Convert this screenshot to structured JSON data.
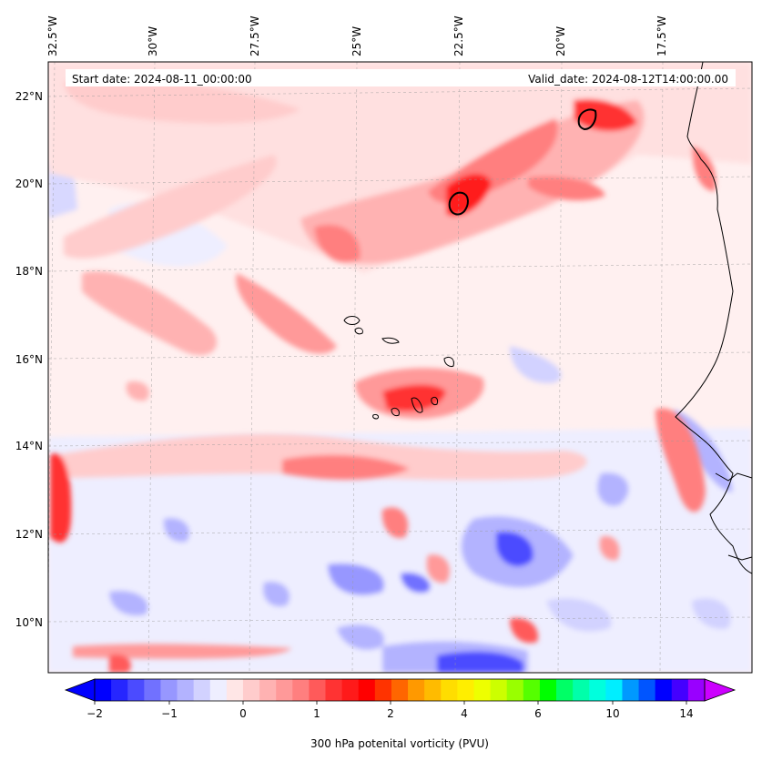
{
  "map": {
    "start_date_text": "Start date: 2024-08-11_00:00:00",
    "valid_date_text": "Valid_date: 2024-08-12T14:00:00.00",
    "longitude_labels": [
      "32.5°W",
      "30°W",
      "27.5°W",
      "25°W",
      "22.5°W",
      "20°W",
      "17.5°W"
    ],
    "latitude_labels": [
      "22°N",
      "20°N",
      "18°N",
      "16°N",
      "14°N",
      "12°N",
      "10°N"
    ],
    "extent": {
      "lon_min": -33.0,
      "lon_max": -15.0,
      "lat_min": 8.8,
      "lat_max": 22.8
    }
  },
  "colorbar": {
    "title": "300 hPa potenital vorticity (PVU)",
    "tick_labels": [
      "−2",
      "−1",
      "0",
      "1",
      "2",
      "4",
      "6",
      "10",
      "14"
    ],
    "colors": [
      "#0000ff",
      "#2626ff",
      "#4b4bff",
      "#7171ff",
      "#9797ff",
      "#b3b3ff",
      "#d2d2ff",
      "#eeeeff",
      "#ffe6e6",
      "#ffcccc",
      "#ffb2b2",
      "#ff9999",
      "#ff7f7f",
      "#ff5a5a",
      "#ff3333",
      "#ff1a1a",
      "#ff0000",
      "#ff3300",
      "#ff6600",
      "#ff9900",
      "#ffbb00",
      "#ffdd00",
      "#ffee00",
      "#eeff00",
      "#ccff00",
      "#99ff00",
      "#55ff00",
      "#00ff00",
      "#00ff66",
      "#00ffaa",
      "#00ffdd",
      "#00eeff",
      "#0099ff",
      "#0055ff",
      "#0000ff",
      "#4400ff",
      "#9900ff"
    ],
    "under_color": "#0000ff",
    "over_color": "#cc00ff"
  }
}
